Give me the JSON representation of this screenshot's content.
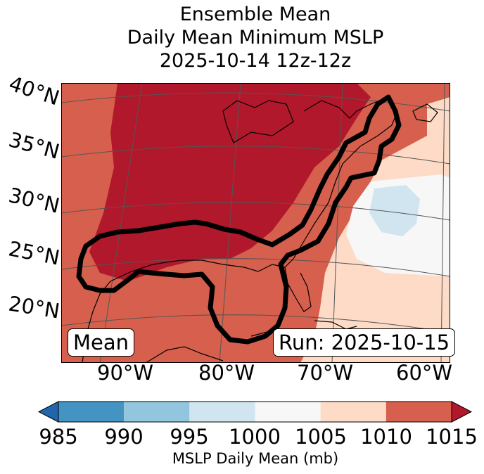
{
  "title": {
    "line1": "Ensemble Mean",
    "line2": "Daily Mean Minimum MSLP",
    "line3": "2025-10-14 12z-12z"
  },
  "map": {
    "lat_labels": [
      "40°N",
      "35°N",
      "30°N",
      "25°N",
      "20°N"
    ],
    "lon_labels": [
      "90°W",
      "80°W",
      "70°W",
      "60°W"
    ],
    "stat_box": "Mean",
    "run_box": "Run: 2025-10-15",
    "colors": {
      "above_1015": "#b2182b",
      "r1010_1015": "#d6604d",
      "r1005_1010": "#fddbc7",
      "r1000_1005": "#f7f7f7",
      "r995_1000": "#d1e5f0",
      "ocean": "#f4f4f4"
    }
  },
  "colorbar": {
    "ticks": [
      "985",
      "990",
      "995",
      "1000",
      "1005",
      "1010",
      "1015"
    ],
    "colors": [
      "#2166ac",
      "#4393c3",
      "#92c5de",
      "#d1e5f0",
      "#f7f7f7",
      "#fddbc7",
      "#d6604d",
      "#b2182b"
    ],
    "label": "MSLP Daily Mean (mb)"
  }
}
